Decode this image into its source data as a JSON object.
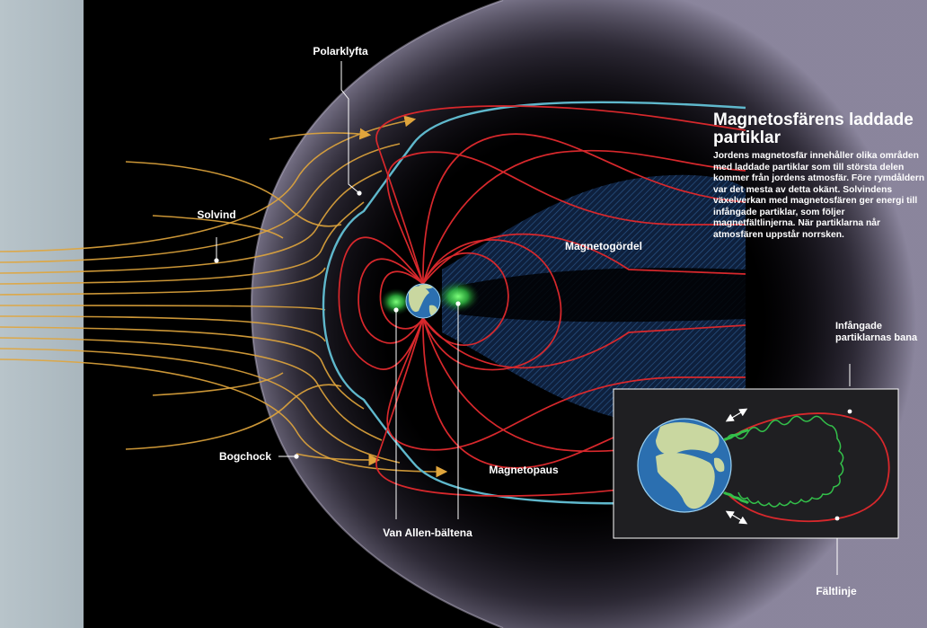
{
  "labels": {
    "polarklyfta": "Polarklyfta",
    "solvind": "Solvind",
    "magnetogordel": "Magnetogördel",
    "bogchock": "Bogchock",
    "magnetopaus": "Magnetopaus",
    "van_allen": "Van Allen-bältena",
    "trapped_path": "Infångade partiklarnas bana",
    "faltlinje": "Fältlinje"
  },
  "info": {
    "title": "Magnetosfärens laddade partiklar",
    "body": "Jordens magnetosfär innehåller olika områden med laddade partiklar som till största delen kommer från jordens atmosfär. Före rymdåldern var det mesta av detta okänt. Solvindens växelverkan med magnetosfären ger energi till infångade partiklar, som följer magnetfältlinjerna. När partiklarna når atmosfären uppstår norrsken."
  },
  "colors": {
    "background": "#000000",
    "sun_panel": "#b5c2c8",
    "solar_wind": "#e0a53c",
    "field_lines": "#d8282c",
    "magnetopause": "#5fb8cc",
    "belts": "#33c04a",
    "magnetotail": "#1a3a66",
    "inset_bg": "#1f1f22",
    "ocean": "#2b6fb0",
    "land": "#c9d7a0"
  }
}
